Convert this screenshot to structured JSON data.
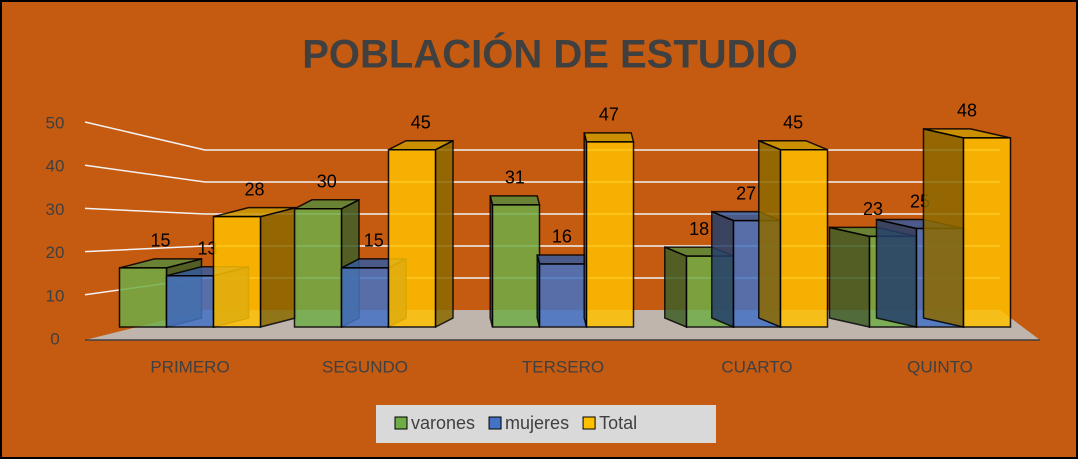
{
  "chart_data": {
    "type": "bar3d",
    "title": "POBLACIÓN  DE ESTUDIO",
    "categories": [
      "PRIMERO",
      "SEGUNDO",
      "TERSERO",
      "CUARTO",
      "QUINTO"
    ],
    "series": [
      {
        "name": "varones",
        "color": "#70ad47",
        "values": [
          15,
          30,
          31,
          18,
          23
        ]
      },
      {
        "name": "mujeres",
        "color": "#4472c4",
        "values": [
          13,
          15,
          16,
          27,
          25
        ]
      },
      {
        "name": "Total",
        "color": "#ffc000",
        "values": [
          28,
          45,
          47,
          45,
          48
        ]
      }
    ],
    "ylim": [
      0,
      50
    ],
    "yticks": [
      0,
      10,
      20,
      30,
      40,
      50
    ],
    "grid": true,
    "legend": "bottom"
  }
}
